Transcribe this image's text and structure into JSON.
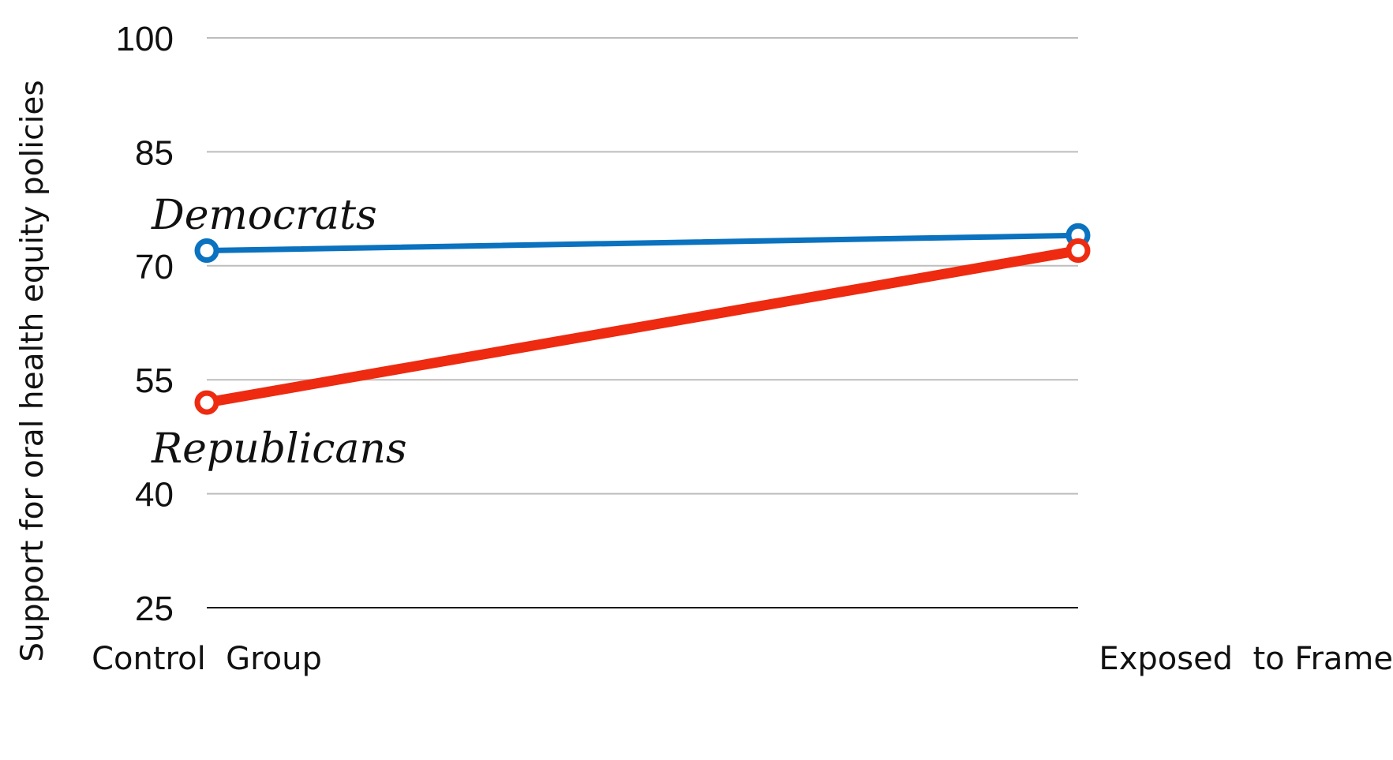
{
  "chart_data": {
    "type": "line",
    "title": "",
    "xlabel": "",
    "ylabel": "Support for oral health equity policies",
    "categories": [
      "Control  Group",
      "Exposed  to Frame"
    ],
    "ylim": [
      25,
      100
    ],
    "yticks": [
      25,
      40,
      55,
      70,
      85,
      100
    ],
    "grid": true,
    "legend": "none",
    "series": [
      {
        "name": "Democrats",
        "values": [
          72,
          74
        ],
        "color": "#0a72bf"
      },
      {
        "name": "Republicans",
        "values": [
          52,
          72
        ],
        "color": "#ee2a10"
      }
    ]
  }
}
